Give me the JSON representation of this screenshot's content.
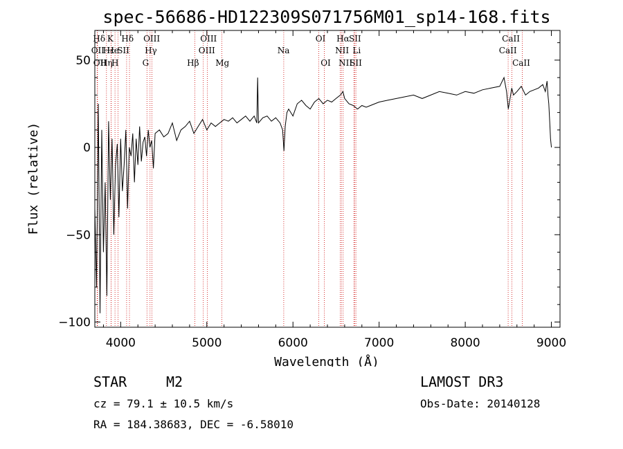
{
  "chart_data": {
    "type": "line",
    "title": "spec-56686-HD122309S071756M01_sp14-168.fits",
    "xlabel": "Wavelength (Å)",
    "ylabel": "Flux (relative)",
    "xlim": [
      3700,
      9100
    ],
    "ylim": [
      -103,
      67
    ],
    "xticks": [
      4000,
      5000,
      6000,
      7000,
      8000,
      9000
    ],
    "yticks": [
      -100,
      -50,
      0,
      50
    ],
    "grid": false,
    "series": [
      {
        "x": [
          3700,
          3720,
          3740,
          3760,
          3780,
          3800,
          3820,
          3840,
          3860,
          3880,
          3900,
          3920,
          3940,
          3960,
          3980,
          4000,
          4020,
          4040,
          4060,
          4080,
          4100,
          4120,
          4140,
          4160,
          4180,
          4200,
          4220,
          4240,
          4260,
          4280,
          4300,
          4320,
          4340,
          4360,
          4380,
          4400,
          4450,
          4500,
          4550,
          4600,
          4650,
          4700,
          4750,
          4800,
          4850,
          4900,
          4950,
          5000,
          5050,
          5100,
          5150,
          5200,
          5250,
          5300,
          5350,
          5400,
          5450,
          5500,
          5550,
          5580,
          5590,
          5600,
          5650,
          5700,
          5750,
          5800,
          5850,
          5880,
          5895,
          5910,
          5930,
          5950,
          6000,
          6050,
          6100,
          6150,
          6200,
          6250,
          6300,
          6350,
          6400,
          6450,
          6500,
          6550,
          6580,
          6600,
          6650,
          6700,
          6750,
          6800,
          6850,
          6900,
          6950,
          7000,
          7100,
          7200,
          7300,
          7400,
          7500,
          7600,
          7700,
          7800,
          7900,
          8000,
          8100,
          8200,
          8300,
          8400,
          8450,
          8480,
          8500,
          8520,
          8540,
          8560,
          8600,
          8650,
          8700,
          8750,
          8800,
          8850,
          8900,
          8930,
          8950,
          8960,
          8970,
          8980,
          8990,
          9000
        ],
        "y": [
          -35,
          -80,
          25,
          -95,
          10,
          -60,
          -20,
          -85,
          15,
          -30,
          5,
          -50,
          -10,
          2,
          -40,
          5,
          -25,
          -10,
          10,
          -35,
          0,
          -5,
          8,
          -20,
          5,
          -10,
          12,
          -8,
          3,
          6,
          -5,
          10,
          0,
          4,
          -12,
          8,
          10,
          6,
          8,
          14,
          4,
          10,
          12,
          15,
          8,
          12,
          16,
          10,
          14,
          12,
          14,
          16,
          15,
          17,
          14,
          16,
          18,
          15,
          18,
          14,
          40,
          14,
          17,
          18,
          15,
          17,
          14,
          10,
          -2,
          12,
          20,
          22,
          18,
          25,
          27,
          24,
          22,
          26,
          28,
          25,
          27,
          26,
          28,
          30,
          32,
          28,
          25,
          24,
          22,
          24,
          23,
          24,
          25,
          26,
          27,
          28,
          29,
          30,
          28,
          30,
          32,
          31,
          30,
          32,
          31,
          33,
          34,
          35,
          40,
          32,
          22,
          28,
          34,
          30,
          32,
          35,
          30,
          32,
          33,
          34,
          36,
          32,
          38,
          30,
          25,
          15,
          5,
          0
        ]
      }
    ],
    "lines": [
      {
        "label": "Hδ",
        "x": 3727,
        "row": 0,
        "lw": 3750
      },
      {
        "label": "OII",
        "x": 3729,
        "row": 1,
        "lw": 3735
      },
      {
        "label": "OII",
        "x": 3731,
        "row": 2,
        "lw": 3760
      },
      {
        "label": "Hε",
        "x": 3835,
        "row": 1,
        "lw": 3860
      },
      {
        "label": "Hη",
        "x": 3889,
        "row": 2,
        "lw": 3835
      },
      {
        "label": "K",
        "x": 3934,
        "row": 0,
        "lw": 3880
      },
      {
        "label": "H",
        "x": 3969,
        "row": 2,
        "lw": 3935
      },
      {
        "label": "He",
        "x": 3889,
        "row": 1,
        "lw": 3910
      },
      {
        "label": "SII",
        "x": 4069,
        "row": 1,
        "lw": 4030
      },
      {
        "label": "Hδ",
        "x": 4102,
        "row": 0,
        "lw": 4080
      },
      {
        "label": "OIII",
        "x": 4363,
        "row": 0,
        "lw": 4360
      },
      {
        "label": "Hγ",
        "x": 4341,
        "row": 1,
        "lw": 4350
      },
      {
        "label": "G",
        "x": 4305,
        "row": 2,
        "lw": 4290
      },
      {
        "label": "Hβ",
        "x": 4861,
        "row": 2,
        "lw": 4840
      },
      {
        "label": "OIII",
        "x": 4959,
        "row": 1,
        "lw": 5000
      },
      {
        "label": "OIII",
        "x": 5007,
        "row": 0,
        "lw": 5020
      },
      {
        "label": "Mg",
        "x": 5175,
        "row": 2,
        "lw": 5180
      },
      {
        "label": "Na",
        "x": 5893,
        "row": 1,
        "lw": 5890
      },
      {
        "label": "OI",
        "x": 6300,
        "row": 0,
        "lw": 6320
      },
      {
        "label": "OI",
        "x": 6364,
        "row": 2,
        "lw": 6380
      },
      {
        "label": "Hα",
        "x": 6563,
        "row": 0,
        "lw": 6580
      },
      {
        "label": "NII",
        "x": 6548,
        "row": 1,
        "lw": 6570
      },
      {
        "label": "NII",
        "x": 6583,
        "row": 2,
        "lw": 6610
      },
      {
        "label": "SII",
        "x": 6716,
        "row": 0,
        "lw": 6720
      },
      {
        "label": "Li",
        "x": 6707,
        "row": 1,
        "lw": 6740
      },
      {
        "label": "SII",
        "x": 6731,
        "row": 2,
        "lw": 6730
      },
      {
        "label": "CaII",
        "x": 8542,
        "row": 0,
        "lw": 8530
      },
      {
        "label": "CaII",
        "x": 8498,
        "row": 1,
        "lw": 8495
      },
      {
        "label": "CaII",
        "x": 8662,
        "row": 2,
        "lw": 8650
      }
    ]
  },
  "info": {
    "class": "STAR",
    "subclass": "M2",
    "survey": "LAMOST DR3",
    "cz": "cz = 79.1 ± 10.5 km/s",
    "obs_date": "Obs-Date: 20140128",
    "coords": "RA = 184.38683, DEC =  -6.58010"
  },
  "colors": {
    "spectrum": "#000000",
    "line_markers": "#cc0000",
    "axes": "#000000"
  }
}
